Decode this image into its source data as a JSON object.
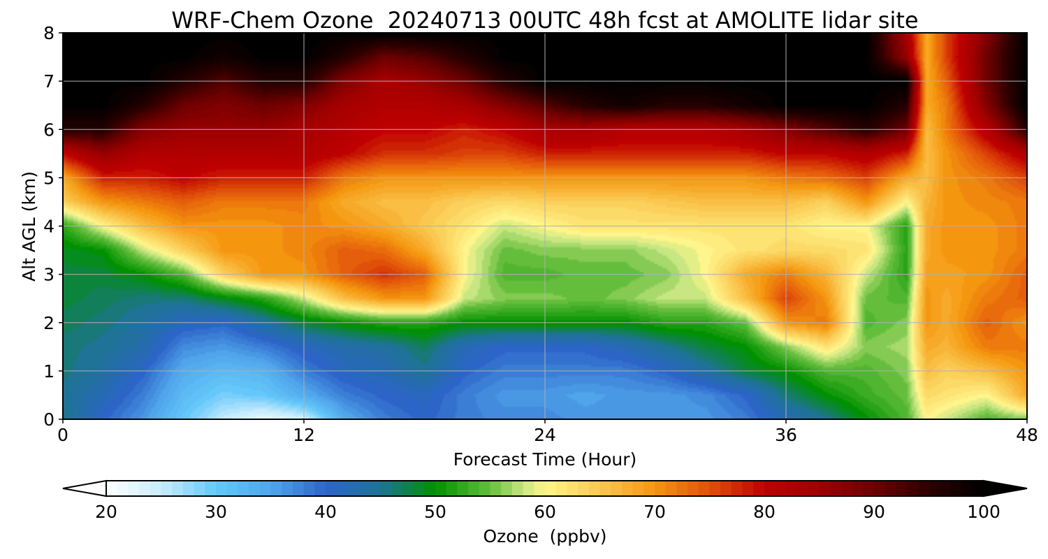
{
  "chart_data": {
    "type": "heatmap",
    "title": "WRF-Chem Ozone  20240713 00UTC 48h fcst at AMOLITE lidar site",
    "xlabel": "Forecast Time (Hour)",
    "ylabel": "Alt AGL (km)",
    "xlim": [
      0,
      48
    ],
    "ylim": [
      0,
      8
    ],
    "xticks": [
      0,
      12,
      24,
      36,
      48
    ],
    "yticks": [
      0,
      1,
      2,
      3,
      4,
      5,
      6,
      7,
      8
    ],
    "grid": true,
    "colorbar": {
      "label": "Ozone  (ppbv)",
      "ticks": [
        20,
        30,
        40,
        50,
        60,
        70,
        80,
        90,
        100
      ],
      "range": [
        20,
        100
      ],
      "extend": "both",
      "orientation": "horizontal"
    },
    "hours": [
      0,
      2,
      4,
      6,
      8,
      10,
      12,
      14,
      16,
      18,
      20,
      22,
      24,
      26,
      28,
      30,
      32,
      34,
      36,
      38,
      40,
      42,
      43,
      44,
      46,
      48
    ],
    "altitudes_km": [
      0,
      0.5,
      1,
      1.5,
      2,
      2.5,
      3,
      3.5,
      4,
      4.5,
      5,
      5.5,
      6,
      6.5,
      7,
      7.5,
      8
    ],
    "ozone_ppbv": [
      [
        46,
        40,
        36,
        30,
        25,
        22,
        24,
        34,
        38,
        40,
        38,
        37,
        37,
        36,
        36,
        36,
        36,
        38,
        42,
        45,
        50,
        54,
        60,
        58,
        54,
        56
      ],
      [
        45,
        42,
        38,
        32,
        29,
        30,
        34,
        38,
        40,
        41,
        38,
        36,
        36,
        35,
        36,
        36,
        37,
        40,
        46,
        50,
        53,
        55,
        63,
        62,
        60,
        68
      ],
      [
        46,
        44,
        40,
        34,
        32,
        33,
        38,
        41,
        42,
        45,
        40,
        38,
        38,
        38,
        38,
        40,
        44,
        48,
        50,
        54,
        54,
        56,
        66,
        64,
        66,
        70
      ],
      [
        46,
        45,
        43,
        37,
        36,
        38,
        41,
        43,
        44,
        47,
        42,
        40,
        40,
        40,
        42,
        45,
        48,
        50,
        56,
        62,
        56,
        57,
        68,
        67,
        72,
        72
      ],
      [
        47,
        46,
        44,
        41,
        40,
        44,
        48,
        50,
        52,
        52,
        50,
        50,
        50,
        50,
        50,
        52,
        52,
        55,
        70,
        72,
        54,
        56,
        70,
        68,
        74,
        70
      ],
      [
        48,
        47,
        46,
        46,
        49,
        52,
        58,
        66,
        70,
        70,
        58,
        56,
        56,
        55,
        56,
        58,
        58,
        66,
        76,
        70,
        55,
        54,
        70,
        68,
        72,
        74
      ],
      [
        48,
        48,
        50,
        54,
        64,
        70,
        70,
        74,
        77,
        74,
        60,
        54,
        54,
        55,
        55,
        56,
        60,
        68,
        72,
        67,
        58,
        52,
        69,
        69,
        70,
        74
      ],
      [
        49,
        50,
        58,
        64,
        70,
        70,
        71,
        74,
        73,
        68,
        60,
        55,
        56,
        56,
        56,
        58,
        60,
        62,
        63,
        63,
        62,
        52,
        68,
        70,
        70,
        72
      ],
      [
        52,
        60,
        66,
        70,
        70,
        70,
        71,
        70,
        68,
        65,
        62,
        58,
        60,
        62,
        62,
        62,
        62,
        62,
        62,
        60,
        60,
        52,
        68,
        70,
        70,
        72
      ],
      [
        64,
        70,
        72,
        74,
        72,
        72,
        72,
        68,
        66,
        66,
        64,
        63,
        64,
        64,
        64,
        65,
        66,
        66,
        66,
        64,
        70,
        60,
        67,
        70,
        71,
        72
      ],
      [
        68,
        78,
        78,
        80,
        78,
        78,
        78,
        72,
        70,
        70,
        70,
        70,
        70,
        70,
        70,
        70,
        70,
        70,
        72,
        73,
        76,
        68,
        66,
        70,
        72,
        76
      ],
      [
        80,
        86,
        82,
        82,
        82,
        82,
        82,
        80,
        77,
        77,
        76,
        76,
        78,
        78,
        78,
        78,
        78,
        78,
        80,
        80,
        82,
        78,
        66,
        70,
        76,
        82
      ],
      [
        96,
        96,
        88,
        86,
        86,
        86,
        84,
        82,
        80,
        80,
        78,
        80,
        84,
        84,
        82,
        82,
        82,
        84,
        88,
        92,
        96,
        90,
        66,
        72,
        82,
        96
      ],
      [
        100,
        100,
        96,
        90,
        88,
        90,
        88,
        84,
        82,
        82,
        84,
        88,
        92,
        96,
        98,
        96,
        96,
        98,
        100,
        100,
        100,
        96,
        68,
        72,
        88,
        100
      ],
      [
        100,
        100,
        100,
        96,
        92,
        96,
        96,
        88,
        84,
        86,
        90,
        96,
        100,
        100,
        100,
        100,
        100,
        100,
        100,
        100,
        100,
        100,
        68,
        74,
        90,
        100
      ],
      [
        100,
        100,
        100,
        100,
        98,
        100,
        100,
        96,
        90,
        92,
        96,
        100,
        100,
        100,
        100,
        100,
        100,
        100,
        100,
        100,
        100,
        86,
        68,
        76,
        90,
        100
      ],
      [
        100,
        100,
        100,
        100,
        100,
        100,
        100,
        100,
        100,
        100,
        100,
        100,
        100,
        100,
        100,
        100,
        100,
        100,
        100,
        100,
        100,
        84,
        68,
        76,
        88,
        100
      ]
    ]
  }
}
